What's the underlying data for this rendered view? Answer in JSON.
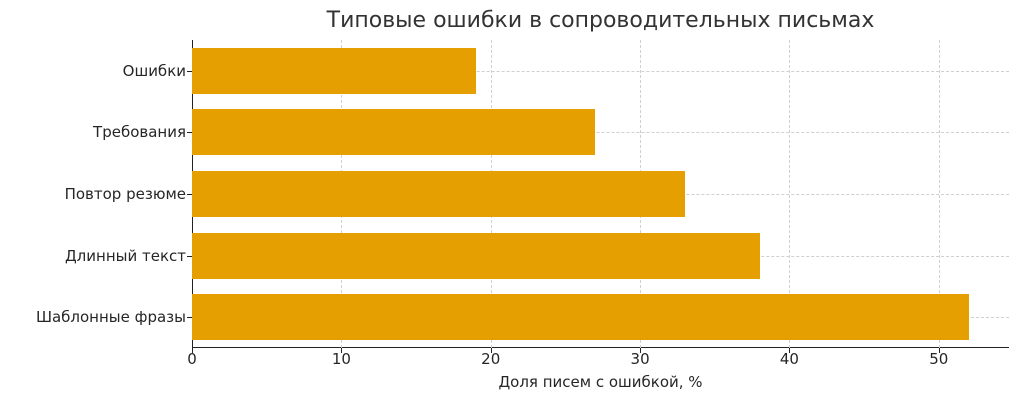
{
  "chart_data": {
    "type": "bar",
    "orientation": "horizontal",
    "title": "Типовые ошибки в сопроводительных письмах",
    "xlabel": "Доля писем с ошибкой, %",
    "ylabel": "",
    "categories": [
      "Ошибки",
      "Требования",
      "Повтор резюме",
      "Длинный текст",
      "Шаблонные фразы"
    ],
    "values": [
      19,
      27,
      33,
      38,
      52
    ],
    "xlim": [
      0,
      54.7
    ],
    "xticks": [
      0,
      10,
      20,
      30,
      40,
      50
    ],
    "grid": true,
    "bar_color": "#E69F00"
  },
  "labels": {
    "title": "Типовые ошибки в сопроводительных письмах",
    "xaxis_title": "Доля писем с ошибкой, %",
    "xticks": [
      "0",
      "10",
      "20",
      "30",
      "40",
      "50"
    ],
    "categories": [
      "Ошибки",
      "Требования",
      "Повтор резюме",
      "Длинный текст",
      "Шаблонные фразы"
    ]
  }
}
